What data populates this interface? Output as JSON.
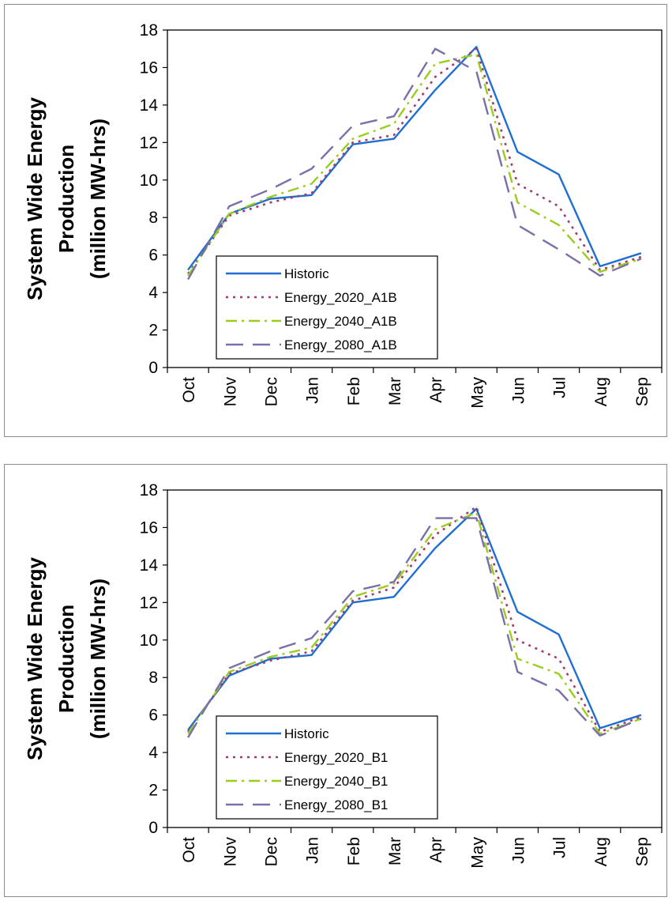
{
  "chart_data": [
    {
      "type": "line",
      "title": "",
      "ylabel": [
        "System Wide Energy",
        "Production",
        "(million MW-hrs)"
      ],
      "xlabel": "",
      "ylim": [
        0,
        18
      ],
      "yticks": [
        0,
        2,
        4,
        6,
        8,
        10,
        12,
        14,
        16,
        18
      ],
      "categories": [
        "Oct",
        "Nov",
        "Dec",
        "Jan",
        "Feb",
        "Mar",
        "Apr",
        "May",
        "Jun",
        "Jul",
        "Aug",
        "Sep"
      ],
      "legend_position": "bottom-left",
      "series": [
        {
          "name": "Historic",
          "color": "#1f6fd0",
          "dash": "solid",
          "values": [
            5.2,
            8.2,
            9.0,
            9.2,
            11.9,
            12.2,
            14.8,
            17.1,
            11.5,
            10.3,
            5.4,
            6.1
          ]
        },
        {
          "name": "Energy_2020_A1B",
          "color": "#a03c6e",
          "dash": "dotted",
          "values": [
            5.0,
            8.1,
            8.8,
            9.3,
            12.0,
            12.4,
            15.5,
            17.0,
            9.8,
            8.6,
            5.2,
            5.9
          ]
        },
        {
          "name": "Energy_2040_A1B",
          "color": "#9acd1e",
          "dash": "dashdot",
          "values": [
            4.9,
            8.2,
            9.1,
            9.8,
            12.2,
            13.0,
            16.2,
            16.7,
            8.8,
            7.6,
            5.1,
            5.8
          ]
        },
        {
          "name": "Energy_2080_A1B",
          "color": "#7a6fa8",
          "dash": "longdash",
          "values": [
            4.7,
            8.6,
            9.5,
            10.6,
            12.9,
            13.4,
            17.0,
            15.8,
            7.6,
            6.3,
            4.9,
            5.8
          ]
        }
      ]
    },
    {
      "type": "line",
      "title": "",
      "ylabel": [
        "System Wide Energy",
        "Production",
        "(million MW-hrs)"
      ],
      "xlabel": "",
      "ylim": [
        0,
        18
      ],
      "yticks": [
        0,
        2,
        4,
        6,
        8,
        10,
        12,
        14,
        16,
        18
      ],
      "categories": [
        "Oct",
        "Nov",
        "Dec",
        "Jan",
        "Feb",
        "Mar",
        "Apr",
        "May",
        "Jun",
        "Jul",
        "Aug",
        "Sep"
      ],
      "legend_position": "bottom-left",
      "series": [
        {
          "name": "Historic",
          "color": "#1f6fd0",
          "dash": "solid",
          "values": [
            5.2,
            8.1,
            9.0,
            9.2,
            12.0,
            12.3,
            14.9,
            17.0,
            11.5,
            10.3,
            5.3,
            6.0
          ]
        },
        {
          "name": "Energy_2020_B1",
          "color": "#a03c6e",
          "dash": "dotted",
          "values": [
            5.1,
            8.2,
            8.9,
            9.4,
            12.1,
            12.8,
            15.6,
            17.1,
            10.0,
            9.0,
            5.1,
            5.9
          ]
        },
        {
          "name": "Energy_2040_B1",
          "color": "#9acd1e",
          "dash": "dashdot",
          "values": [
            5.0,
            8.3,
            9.1,
            9.6,
            12.3,
            13.0,
            15.9,
            16.8,
            9.0,
            8.2,
            5.0,
            5.8
          ]
        },
        {
          "name": "Energy_2080_B1",
          "color": "#7a6fa8",
          "dash": "longdash",
          "values": [
            4.8,
            8.5,
            9.4,
            10.1,
            12.6,
            13.1,
            16.5,
            16.5,
            8.3,
            7.3,
            4.9,
            5.8
          ]
        }
      ]
    }
  ]
}
